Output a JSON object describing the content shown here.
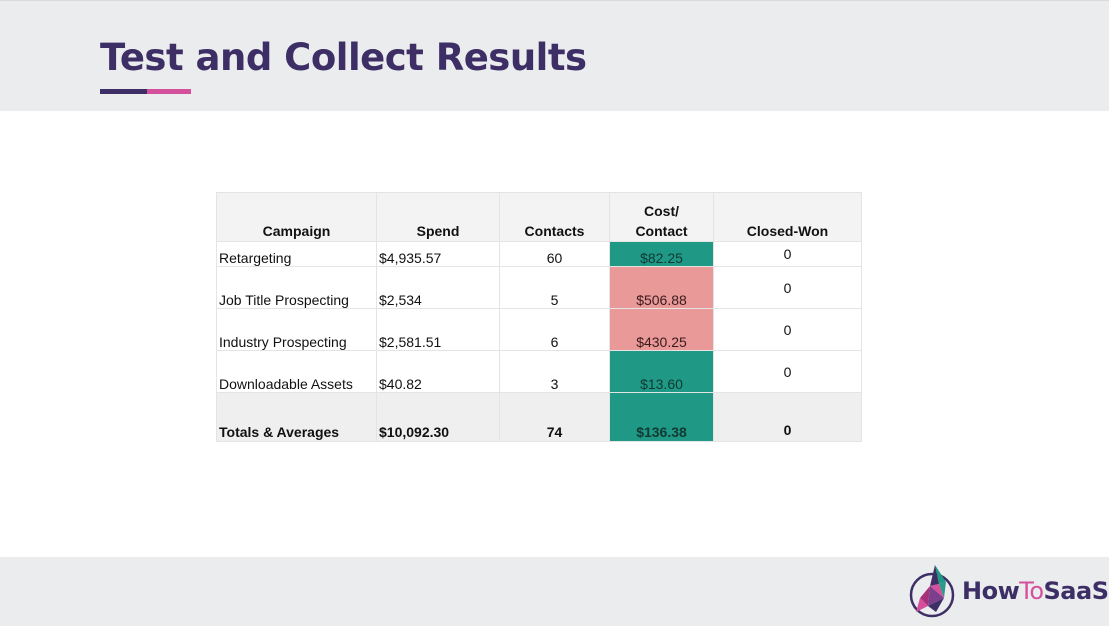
{
  "slide": {
    "title": "Test and Collect Results"
  },
  "table": {
    "headers": {
      "campaign": "Campaign",
      "spend": "Spend",
      "contacts": "Contacts",
      "cost_line1": "Cost/",
      "cost_line2": "Contact",
      "closed_won": "Closed-Won"
    },
    "rows": [
      {
        "campaign": "Retargeting",
        "spend": "$4,935.57",
        "contacts": "60",
        "cost_per_contact": "$82.25",
        "closed_won": "0",
        "cost_color": "#1f9885"
      },
      {
        "campaign": "Job Title Prospecting",
        "spend": "$2,534",
        "contacts": "5",
        "cost_per_contact": "$506.88",
        "closed_won": "0",
        "cost_color": "#ea9999"
      },
      {
        "campaign": "Industry Prospecting",
        "spend": "$2,581.51",
        "contacts": "6",
        "cost_per_contact": "$430.25",
        "closed_won": "0",
        "cost_color": "#ea9999"
      },
      {
        "campaign": "Downloadable Assets",
        "spend": "$40.82",
        "contacts": "3",
        "cost_per_contact": "$13.60",
        "closed_won": "0",
        "cost_color": "#1f9885"
      }
    ],
    "totals": {
      "campaign": "Totals & Averages",
      "spend": "$10,092.30",
      "contacts": "74",
      "cost_per_contact": "$136.38",
      "closed_won": "0",
      "cost_color": "#1f9885"
    }
  },
  "logo": {
    "part1": "How",
    "part2": "To",
    "part3": "SaaS",
    "icon": "rocket-logo-icon"
  },
  "colors": {
    "title": "#3d2f66",
    "accent_purple": "#3d2f66",
    "accent_pink": "#d5509c",
    "good": "#1f9885",
    "bad": "#ea9999",
    "band": "#ebeced"
  }
}
